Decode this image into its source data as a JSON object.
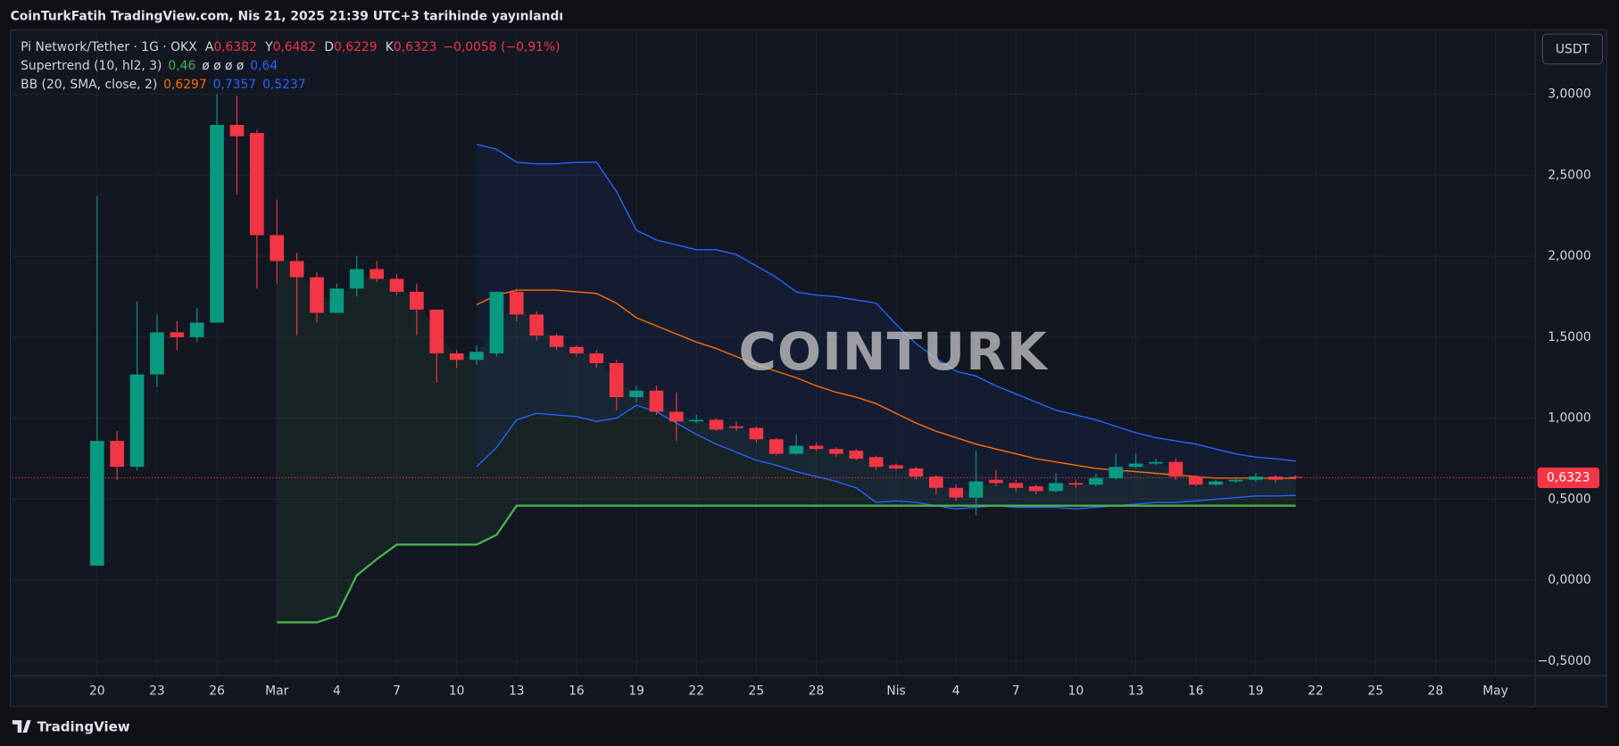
{
  "chart_data": {
    "type": "candlestick",
    "title": "CoinTurkFatih TradingView.com, Nis 21, 2025 21:39 UTC+3 tarihinde yayınlandı",
    "symbol": "Pi Network/Tether · 1G · OKX",
    "ohlc_legend": [
      {
        "key": "A",
        "value": {
          "value": 0.6382,
          "label": "0,6382"
        }
      },
      {
        "key": "Y",
        "value": {
          "value": 0.6482,
          "label": "0,6482"
        }
      },
      {
        "key": "D",
        "value": {
          "value": 0.6229,
          "label": "0,6229"
        }
      },
      {
        "key": "K",
        "value": {
          "value": 0.6323,
          "label": "0,6323"
        }
      }
    ],
    "change": {
      "value": -0.0058,
      "label": "−0,0058"
    },
    "change_pct": {
      "value": -0.91,
      "label": "(−0,91%)"
    },
    "supertrend_legend": {
      "name": "Supertrend (10, hl2, 3)",
      "up": {
        "value": 0.46,
        "label": "0,46"
      },
      "empty": "ø ø ø ø",
      "down": {
        "value": 0.64,
        "label": "0,64"
      }
    },
    "bb_legend": {
      "name": "BB (20, SMA, close, 2)",
      "basis": {
        "value": 0.6297,
        "label": "0,6297"
      },
      "upper": {
        "value": 0.7357,
        "label": "0,7357"
      },
      "lower": {
        "value": 0.5237,
        "label": "0,5237"
      }
    },
    "unit": "USDT",
    "watermark": "COINTURK",
    "footer": "TradingView",
    "price_tag": {
      "value": 0.6323,
      "label": "0,6323"
    },
    "up_color": "#089981",
    "down_color": "#f23645",
    "candles": {
      "x": [
        0,
        1,
        2,
        3,
        4,
        5,
        6,
        7,
        8,
        9,
        10,
        11,
        12,
        13,
        14,
        15,
        16,
        17,
        18,
        19,
        20,
        21,
        22,
        23,
        24,
        25,
        26,
        27,
        28,
        29,
        30,
        31,
        32,
        33,
        34,
        35,
        36,
        37,
        38,
        39,
        40,
        41,
        42,
        43,
        44,
        45,
        46,
        47,
        48,
        49,
        50,
        51,
        52,
        53,
        54,
        55,
        56,
        57,
        58,
        59,
        60
      ],
      "open": [
        0.09,
        0.86,
        0.7,
        1.27,
        1.53,
        1.5,
        1.59,
        2.81,
        2.76,
        2.13,
        1.97,
        1.87,
        1.65,
        1.8,
        1.92,
        1.86,
        1.78,
        1.67,
        1.4,
        1.36,
        1.4,
        1.78,
        1.64,
        1.51,
        1.44,
        1.4,
        1.34,
        1.13,
        1.17,
        1.04,
        0.98,
        0.99,
        0.95,
        0.94,
        0.87,
        0.78,
        0.83,
        0.81,
        0.8,
        0.76,
        0.71,
        0.69,
        0.64,
        0.57,
        0.51,
        0.62,
        0.6,
        0.58,
        0.55,
        0.6,
        0.59,
        0.63,
        0.7,
        0.72,
        0.73,
        0.64,
        0.59,
        0.61,
        0.62,
        0.64,
        0.6382
      ],
      "high": [
        2.37,
        0.92,
        1.72,
        1.64,
        1.6,
        1.68,
        3.0,
        2.99,
        2.78,
        2.35,
        2.02,
        1.9,
        1.83,
        2.0,
        1.97,
        1.89,
        1.83,
        1.67,
        1.42,
        1.45,
        1.78,
        1.8,
        1.66,
        1.52,
        1.45,
        1.42,
        1.36,
        1.2,
        1.2,
        1.16,
        1.02,
        1.0,
        0.98,
        0.95,
        0.88,
        0.9,
        0.85,
        0.82,
        0.81,
        0.77,
        0.72,
        0.7,
        0.65,
        0.59,
        0.8,
        0.68,
        0.62,
        0.59,
        0.66,
        0.62,
        0.66,
        0.78,
        0.78,
        0.75,
        0.75,
        0.65,
        0.62,
        0.64,
        0.66,
        0.65,
        0.6482
      ],
      "low": [
        0.09,
        0.62,
        0.68,
        1.19,
        1.42,
        1.47,
        1.59,
        2.38,
        1.8,
        1.83,
        1.51,
        1.59,
        1.65,
        1.75,
        1.84,
        1.76,
        1.51,
        1.22,
        1.31,
        1.33,
        1.38,
        1.6,
        1.48,
        1.42,
        1.38,
        1.31,
        1.05,
        1.1,
        1.02,
        0.86,
        0.97,
        0.92,
        0.92,
        0.85,
        0.77,
        0.77,
        0.8,
        0.76,
        0.74,
        0.68,
        0.68,
        0.62,
        0.53,
        0.49,
        0.4,
        0.58,
        0.55,
        0.53,
        0.54,
        0.57,
        0.58,
        0.62,
        0.69,
        0.71,
        0.62,
        0.58,
        0.58,
        0.6,
        0.61,
        0.6,
        0.6229
      ],
      "close": [
        0.86,
        0.7,
        1.27,
        1.53,
        1.5,
        1.59,
        2.81,
        2.74,
        2.13,
        1.97,
        1.87,
        1.65,
        1.8,
        1.92,
        1.86,
        1.78,
        1.67,
        1.4,
        1.36,
        1.41,
        1.78,
        1.64,
        1.51,
        1.44,
        1.4,
        1.34,
        1.13,
        1.17,
        1.04,
        0.98,
        0.99,
        0.93,
        0.94,
        0.87,
        0.78,
        0.83,
        0.81,
        0.78,
        0.75,
        0.7,
        0.69,
        0.64,
        0.57,
        0.51,
        0.61,
        0.6,
        0.57,
        0.55,
        0.6,
        0.59,
        0.63,
        0.7,
        0.72,
        0.73,
        0.64,
        0.59,
        0.61,
        0.62,
        0.64,
        0.62,
        0.6323
      ]
    },
    "lines": [
      {
        "name": "bb-upper",
        "color": "#2962ff",
        "values": [
          null,
          null,
          null,
          null,
          null,
          null,
          null,
          null,
          null,
          null,
          null,
          null,
          null,
          null,
          null,
          null,
          null,
          null,
          null,
          2.69,
          2.66,
          2.58,
          2.57,
          2.57,
          2.58,
          2.58,
          2.4,
          2.16,
          2.1,
          2.07,
          2.04,
          2.04,
          2.01,
          1.94,
          1.87,
          1.78,
          1.76,
          1.75,
          1.73,
          1.71,
          1.58,
          1.46,
          1.37,
          1.29,
          1.26,
          1.2,
          1.15,
          1.1,
          1.05,
          1.02,
          0.99,
          0.95,
          0.91,
          0.88,
          0.86,
          0.84,
          0.81,
          0.78,
          0.76,
          0.75,
          0.7357
        ]
      },
      {
        "name": "bb-basis",
        "color": "#ff6d00",
        "values": [
          null,
          null,
          null,
          null,
          null,
          null,
          null,
          null,
          null,
          null,
          null,
          null,
          null,
          null,
          null,
          null,
          null,
          null,
          null,
          1.7,
          1.76,
          1.79,
          1.79,
          1.79,
          1.78,
          1.77,
          1.71,
          1.62,
          1.57,
          1.52,
          1.47,
          1.43,
          1.38,
          1.33,
          1.29,
          1.25,
          1.2,
          1.16,
          1.13,
          1.09,
          1.03,
          0.97,
          0.92,
          0.88,
          0.84,
          0.81,
          0.78,
          0.75,
          0.73,
          0.71,
          0.69,
          0.68,
          0.67,
          0.66,
          0.65,
          0.64,
          0.63,
          0.63,
          0.63,
          0.63,
          0.6297
        ]
      },
      {
        "name": "bb-lower",
        "color": "#2962ff",
        "values": [
          null,
          null,
          null,
          null,
          null,
          null,
          null,
          null,
          null,
          null,
          null,
          null,
          null,
          null,
          null,
          null,
          null,
          null,
          null,
          0.7,
          0.82,
          0.99,
          1.03,
          1.02,
          1.01,
          0.98,
          1.0,
          1.08,
          1.04,
          0.97,
          0.9,
          0.84,
          0.79,
          0.74,
          0.71,
          0.67,
          0.64,
          0.61,
          0.57,
          0.48,
          0.49,
          0.48,
          0.46,
          0.44,
          0.45,
          0.46,
          0.45,
          0.45,
          0.45,
          0.44,
          0.45,
          0.46,
          0.47,
          0.48,
          0.48,
          0.49,
          0.5,
          0.51,
          0.52,
          0.52,
          0.5237
        ]
      },
      {
        "name": "supertrend",
        "color": "#4caf50",
        "values": [
          null,
          null,
          null,
          null,
          null,
          null,
          null,
          null,
          null,
          -0.26,
          -0.26,
          -0.26,
          -0.22,
          0.03,
          0.13,
          0.22,
          0.22,
          0.22,
          0.22,
          0.22,
          0.28,
          0.46,
          0.46,
          0.46,
          0.46,
          0.46,
          0.46,
          0.46,
          0.46,
          0.46,
          0.46,
          0.46,
          0.46,
          0.46,
          0.46,
          0.46,
          0.46,
          0.46,
          0.46,
          0.46,
          0.46,
          0.46,
          0.46,
          0.46,
          0.46,
          0.46,
          0.46,
          0.46,
          0.46,
          0.46,
          0.46,
          0.46,
          0.46,
          0.46,
          0.46,
          0.46,
          0.46,
          0.46,
          0.46,
          0.46,
          0.46
        ]
      }
    ],
    "xlim": [
      -4.24,
      72
    ],
    "xticks": [
      {
        "value": 0,
        "label": "20"
      },
      {
        "value": 3,
        "label": "23"
      },
      {
        "value": 6,
        "label": "26"
      },
      {
        "value": 9,
        "label": "Mar"
      },
      {
        "value": 12,
        "label": "4"
      },
      {
        "value": 15,
        "label": "7"
      },
      {
        "value": 18,
        "label": "10"
      },
      {
        "value": 21,
        "label": "13"
      },
      {
        "value": 24,
        "label": "16"
      },
      {
        "value": 27,
        "label": "19"
      },
      {
        "value": 30,
        "label": "22"
      },
      {
        "value": 33,
        "label": "25"
      },
      {
        "value": 36,
        "label": "28"
      },
      {
        "value": 40,
        "label": "Nis"
      },
      {
        "value": 43,
        "label": "4"
      },
      {
        "value": 46,
        "label": "7"
      },
      {
        "value": 49,
        "label": "10"
      },
      {
        "value": 52,
        "label": "13"
      },
      {
        "value": 55,
        "label": "16"
      },
      {
        "value": 58,
        "label": "19"
      },
      {
        "value": 61,
        "label": "22"
      },
      {
        "value": 64,
        "label": "25"
      },
      {
        "value": 67,
        "label": "28"
      },
      {
        "value": 70,
        "label": "May"
      }
    ],
    "ylim": [
      -0.59,
      3.39
    ],
    "yticks": [
      {
        "value": -0.5,
        "label": "−0,5000"
      },
      {
        "value": 0,
        "label": "0,0000"
      },
      {
        "value": 0.5,
        "label": "0,5000"
      },
      {
        "value": 1,
        "label": "1,0000"
      },
      {
        "value": 1.5,
        "label": "1,5000"
      },
      {
        "value": 2,
        "label": "2,0000"
      },
      {
        "value": 2.5,
        "label": "2,5000"
      },
      {
        "value": 3,
        "label": "3,0000"
      }
    ],
    "grid": true
  }
}
